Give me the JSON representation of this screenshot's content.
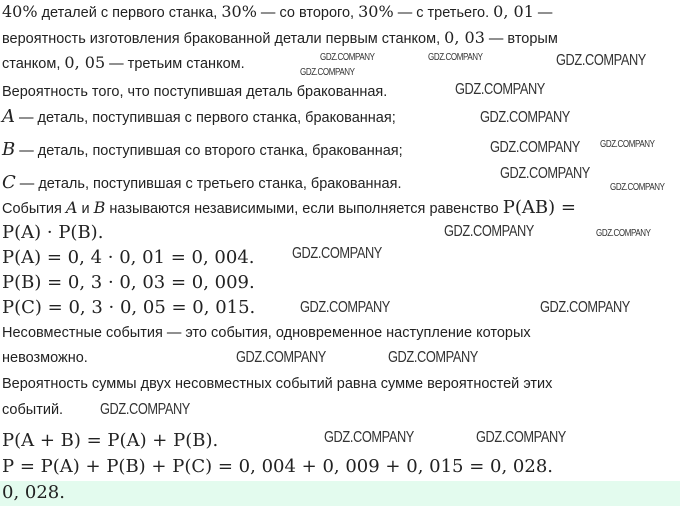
{
  "lines": [
    {
      "parts": [
        "40%",
        " деталей с первого станка, ",
        "30%",
        " — со второго, ",
        "30%",
        " — с третьего. ",
        "0, 01",
        " —"
      ]
    },
    {
      "parts": [
        "вероятность изготовления бракованной детали первым станком, ",
        "0, 03",
        " — вторым"
      ]
    },
    {
      "parts": [
        "станком, ",
        "0, 05",
        " — третьим станком."
      ]
    },
    {
      "parts": [
        "Вероятность того, что поступившая деталь бракованная."
      ]
    },
    {
      "parts": [
        "A",
        " — деталь, поступившая с первого станка, бракованная;"
      ]
    },
    {
      "parts": [
        "B",
        " — деталь, поступившая со второго станка, бракованная;"
      ]
    },
    {
      "parts": [
        "C",
        " — деталь, поступившая с третьего станка, бракованная."
      ]
    },
    {
      "parts": [
        "События ",
        "A",
        " и ",
        "B",
        " называются независимыми, если выполняется равенство ",
        "P(AB) ="
      ]
    },
    {
      "parts": [
        "P(A) · P(B)."
      ]
    },
    {
      "parts": [
        "P(A) = 0, 4 · 0, 01 = 0, 004."
      ]
    },
    {
      "parts": [
        "P(B) = 0, 3 · 0, 03 = 0, 009."
      ]
    },
    {
      "parts": [
        "P(C) = 0, 3 · 0, 05 = 0, 015."
      ]
    },
    {
      "parts": [
        "Несовместные события — это события, одновременное наступление которых"
      ]
    },
    {
      "parts": [
        "невозможно."
      ]
    },
    {
      "parts": [
        "Вероятность суммы двух несовместных событий равна сумме вероятностей этих"
      ]
    },
    {
      "parts": [
        "событий."
      ]
    },
    {
      "parts": [
        "P(A + B) = P(A) + P(B)."
      ]
    },
    {
      "parts": [
        "P = P(A) + P(B) + P(C) = 0, 004 + 0, 009 + 0, 015 = 0, 028."
      ]
    }
  ],
  "answer": "0, 028.",
  "watermark": "GDZ.COMPANY",
  "answer_bg_color": "#e3fbee"
}
